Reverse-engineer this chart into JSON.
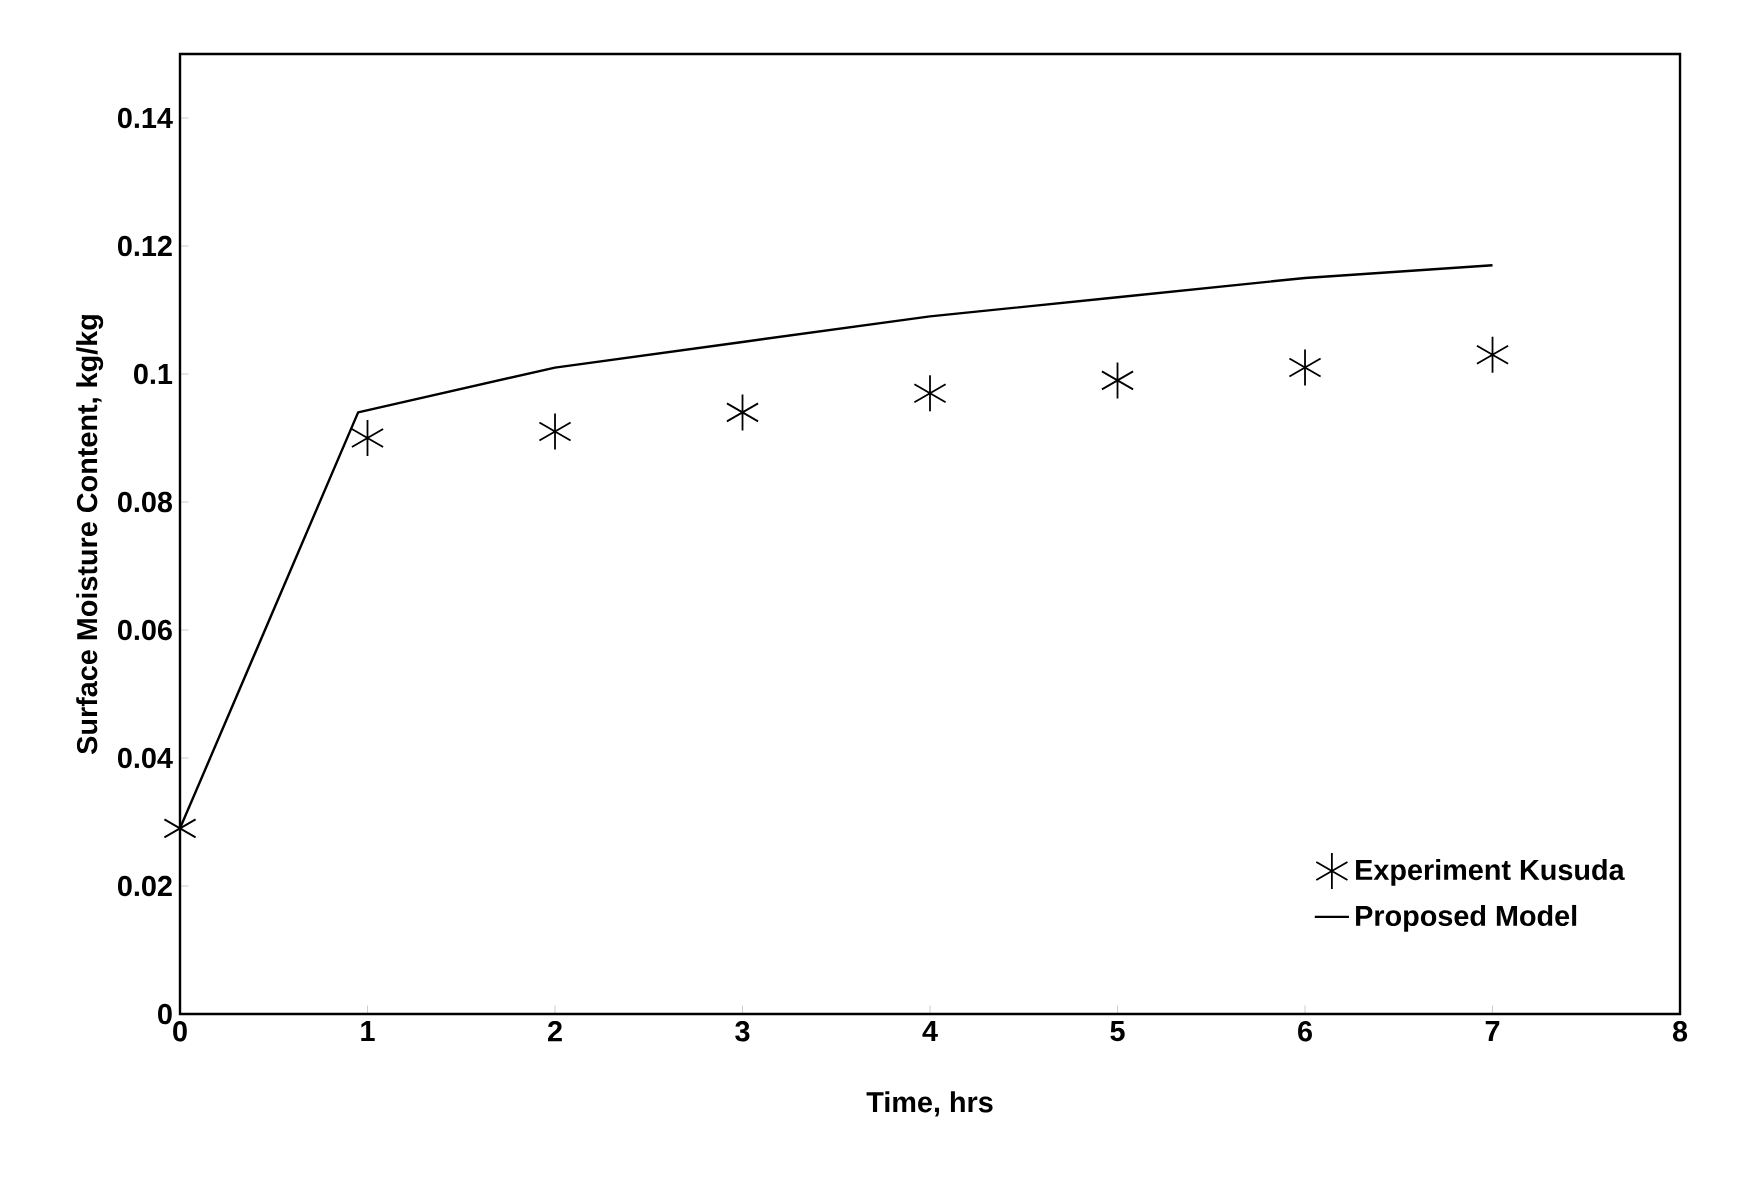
{
  "chart_data": {
    "type": "line",
    "xlabel": "Time, hrs",
    "ylabel": "Surface Moisture Content, kg/kg",
    "xlim": [
      0,
      8
    ],
    "ylim": [
      0,
      0.15
    ],
    "xticks": [
      0,
      1,
      2,
      3,
      4,
      5,
      6,
      7,
      8
    ],
    "yticks": [
      0,
      0.02,
      0.04,
      0.06,
      0.08,
      0.1,
      0.12,
      0.14
    ],
    "grid": false,
    "legend": "bottom right",
    "series": [
      {
        "name": "Experiment Kusuda",
        "type": "scatter",
        "marker": "cross",
        "color": "#000000",
        "x": [
          0,
          1,
          2,
          3,
          4,
          5,
          6,
          7
        ],
        "values": [
          0.029,
          0.09,
          0.091,
          0.094,
          0.097,
          0.099,
          0.101,
          0.103
        ]
      },
      {
        "name": "Proposed Model",
        "marker": "none",
        "line_style": "solid",
        "color": "#000000",
        "x": [
          0,
          0.95,
          2,
          3,
          4,
          5,
          6,
          7
        ],
        "values": [
          0.029,
          0.094,
          0.101,
          0.105,
          0.109,
          0.112,
          0.115,
          0.117
        ]
      }
    ]
  }
}
